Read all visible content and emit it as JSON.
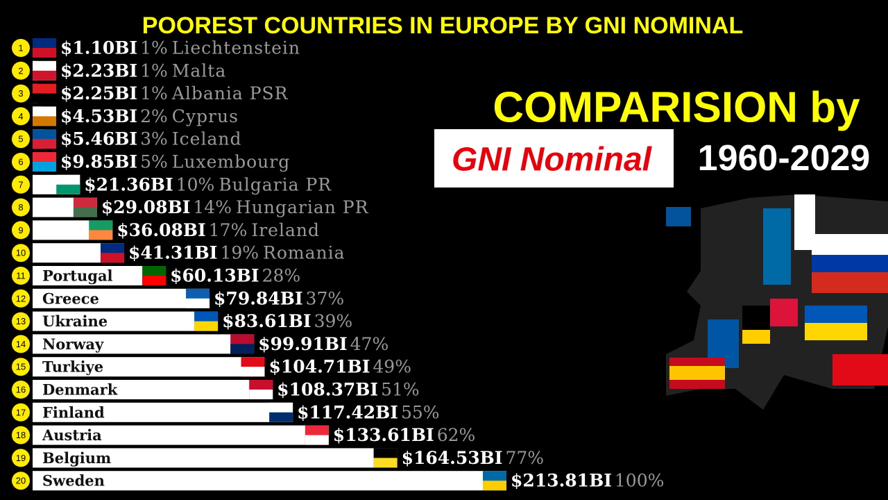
{
  "chart_data": {
    "type": "bar",
    "title": "POOREST COUNTRIES IN EUROPE BY GNI NOMINAL",
    "subtitle": "COMPARISION by",
    "highlight": "GNI Nominal",
    "period": "1960-2029",
    "ranks": [
      1,
      2,
      3,
      4,
      5,
      6,
      7,
      8,
      9,
      10,
      11,
      12,
      13,
      14,
      15,
      16,
      17,
      18,
      19,
      20
    ],
    "categories": [
      "Liechtenstein",
      "Malta",
      "Albania PSR",
      "Cyprus",
      "Iceland",
      "Luxembourg",
      "Bulgaria PR",
      "Hungarian PR",
      "Ireland",
      "Romania",
      "Portugal",
      "Greece",
      "Ukraine",
      "Norway",
      "Turkiye",
      "Denmark",
      "Finland",
      "Austria",
      "Belgium",
      "Sweden"
    ],
    "values": [
      1.1,
      2.23,
      2.25,
      4.53,
      5.46,
      9.85,
      21.36,
      29.08,
      36.08,
      41.31,
      60.13,
      79.84,
      83.61,
      99.91,
      104.71,
      108.37,
      117.42,
      133.61,
      164.53,
      213.81
    ],
    "value_labels": [
      "$1.10BI",
      "$2.23BI",
      "$2.25BI",
      "$4.53BI",
      "$5.46BI",
      "$9.85BI",
      "$21.36BI",
      "$29.08BI",
      "$36.08BI",
      "$41.31BI",
      "$60.13BI",
      "$79.84BI",
      "$83.61BI",
      "$99.91BI",
      "$104.71BI",
      "$108.37BI",
      "$117.42BI",
      "$133.61BI",
      "$164.53BI",
      "$213.81BI"
    ],
    "share_labels": [
      "1%",
      "1%",
      "1%",
      "2%",
      "3%",
      "5%",
      "10%",
      "14%",
      "17%",
      "19%",
      "28%",
      "37%",
      "39%",
      "47%",
      "49%",
      "51%",
      "55%",
      "62%",
      "77%",
      "100%"
    ],
    "color": "#ffffff"
  }
}
